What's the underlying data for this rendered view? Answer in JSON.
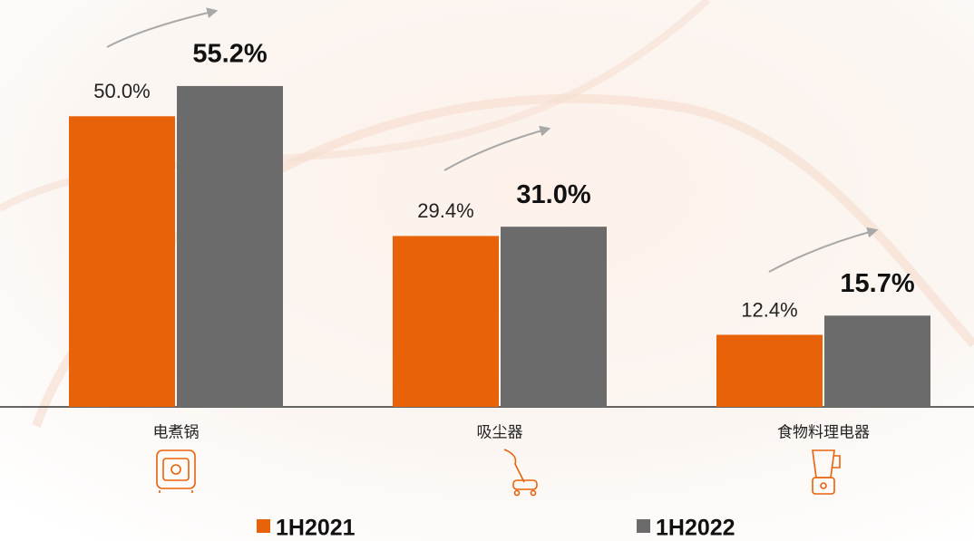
{
  "chart_data": {
    "type": "bar",
    "categories": [
      "电煮锅",
      "吸尘器",
      "食物料理电器"
    ],
    "series": [
      {
        "name": "1H2021",
        "color": "#e8620a",
        "values": [
          50.0,
          29.4,
          12.4
        ],
        "value_labels": [
          "50.0%",
          "29.4%",
          "12.4%"
        ]
      },
      {
        "name": "1H2022",
        "color": "#6b6b6b",
        "values": [
          55.2,
          31.0,
          15.7
        ],
        "value_labels": [
          "55.2%",
          "31.0%",
          "15.7%"
        ]
      }
    ],
    "ylim": [
      0,
      70
    ]
  }
}
